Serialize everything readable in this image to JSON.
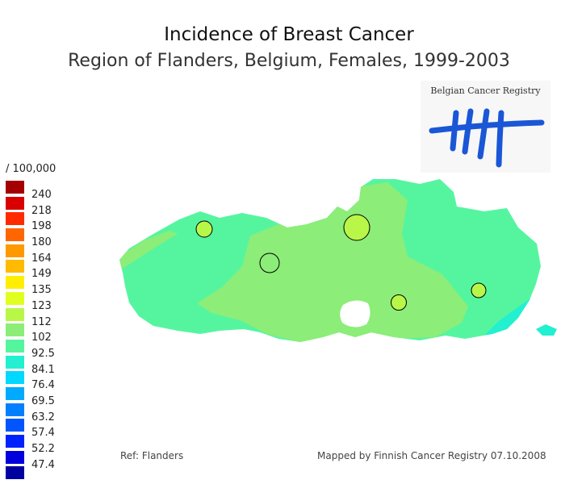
{
  "title": "Incidence of Breast Cancer",
  "subtitle": "Region of Flanders, Belgium, Females, 1999-2003",
  "logo": {
    "text": "Belgian Cancer Registry"
  },
  "legend": {
    "unit": "/ 100,000",
    "entries": [
      {
        "label": "240",
        "color": "#a50000"
      },
      {
        "label": "218",
        "color": "#d80000"
      },
      {
        "label": "198",
        "color": "#ff2a00"
      },
      {
        "label": "180",
        "color": "#ff6600"
      },
      {
        "label": "164",
        "color": "#ff9900"
      },
      {
        "label": "149",
        "color": "#ffbb00"
      },
      {
        "label": "135",
        "color": "#ffee00"
      },
      {
        "label": "123",
        "color": "#e0ff20"
      },
      {
        "label": "112",
        "color": "#b8f748"
      },
      {
        "label": "102",
        "color": "#8ced78"
      },
      {
        "label": "92.5",
        "color": "#55f5a0"
      },
      {
        "label": "84.1",
        "color": "#22f0d0"
      },
      {
        "label": "76.4",
        "color": "#00d8ff"
      },
      {
        "label": "69.5",
        "color": "#00aaff"
      },
      {
        "label": "63.2",
        "color": "#0080ff"
      },
      {
        "label": "57.4",
        "color": "#0055ff"
      },
      {
        "label": "52.2",
        "color": "#0022ff"
      },
      {
        "label": "47.4",
        "color": "#0000dd"
      },
      {
        "label": "",
        "color": "#0000a0"
      }
    ]
  },
  "map": {
    "colors": {
      "base_zone": "#55f5a0",
      "mid_zone": "#8ced78",
      "low_zone": "#22f0d0",
      "city_markers": "#b8f748"
    }
  },
  "footer": {
    "ref": "Ref: Flanders",
    "credit": "Mapped by Finnish Cancer Registry 07.10.2008"
  }
}
